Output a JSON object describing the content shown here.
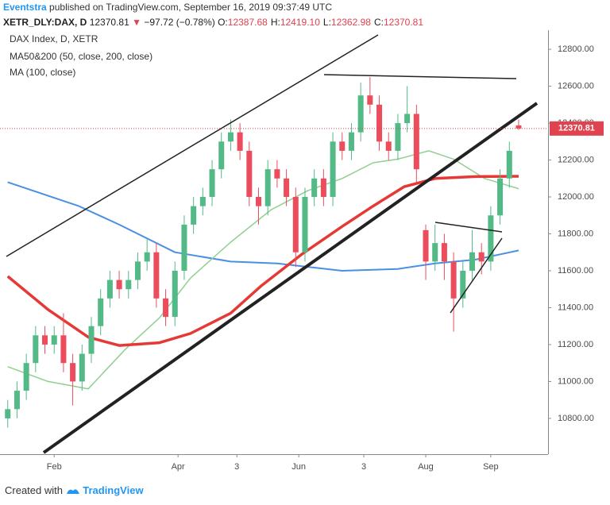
{
  "header": {
    "author": "Eventstra",
    "published": "published on TradingView.com, September 16, 2019 09:37:49 UTC",
    "symbol": "XETR_DLY:DAX, D",
    "change": "−97.72 (−0.78%)",
    "ohlc": [
      {
        "label": "O:",
        "value": "12387.68"
      },
      {
        "label": "H:",
        "value": "12419.10"
      },
      {
        "label": "L:",
        "value": "12362.98"
      },
      {
        "label": "C:",
        "value": "12370.81"
      }
    ]
  },
  "chart_data": {
    "type": "candlestick",
    "legend": [
      "DAX Index, D, XETR",
      "MA50&200 (50, close, 200, close)",
      "MA (100, close)"
    ],
    "up_color": "#53b987",
    "down_color": "#eb4d5c",
    "last_price_color": "#e0424f",
    "x": [
      0,
      3,
      6,
      9,
      12,
      15,
      18,
      21,
      24,
      27,
      30,
      33,
      36,
      39,
      42,
      45,
      48,
      51,
      54,
      57,
      60,
      63,
      66,
      69,
      72,
      75,
      78,
      81,
      84,
      87,
      90,
      93,
      96,
      99,
      102,
      105,
      108,
      111,
      114,
      117,
      120,
      123,
      126,
      129,
      132,
      135,
      138,
      141,
      144,
      147,
      150,
      153,
      156,
      159,
      162,
      165
    ],
    "open": [
      10800,
      10850,
      10950,
      11100,
      11250,
      11200,
      11250,
      11100,
      11000,
      11150,
      11300,
      11450,
      11550,
      11500,
      11550,
      11650,
      11700,
      11450,
      11350,
      11600,
      11850,
      11950,
      12000,
      12150,
      12300,
      12350,
      12250,
      12000,
      11950,
      12150,
      12100,
      12000,
      11700,
      12000,
      12100,
      12000,
      12300,
      12250,
      12350,
      12550,
      12500,
      12300,
      12250,
      12400,
      12450,
      11820,
      11650,
      11750,
      11650,
      11450,
      11600,
      11700,
      11650,
      11900,
      12100,
      12387.68
    ],
    "high": [
      10900,
      11000,
      11150,
      11300,
      11300,
      11300,
      11370,
      11150,
      11200,
      11350,
      11500,
      11600,
      11600,
      11600,
      11700,
      11780,
      11750,
      11500,
      11650,
      11900,
      12000,
      12050,
      12200,
      12350,
      12420,
      12400,
      12300,
      12050,
      12200,
      12200,
      12150,
      12050,
      12050,
      12150,
      12150,
      12350,
      12350,
      12400,
      12620,
      12650,
      12550,
      12350,
      12450,
      12600,
      12500,
      11850,
      11850,
      11800,
      11700,
      11650,
      11820,
      11750,
      11950,
      12150,
      12300,
      12419.1
    ],
    "low": [
      10750,
      10800,
      10900,
      11050,
      11150,
      11150,
      11050,
      10870,
      10950,
      11100,
      11250,
      11400,
      11450,
      11450,
      11500,
      11600,
      11400,
      11300,
      11300,
      11550,
      11800,
      11900,
      11950,
      12100,
      12250,
      12200,
      11950,
      11850,
      11900,
      12050,
      11950,
      11620,
      11650,
      11950,
      11950,
      11950,
      12200,
      12200,
      12300,
      12450,
      12250,
      12200,
      12200,
      12350,
      12080,
      11550,
      11600,
      11550,
      11270,
      11400,
      11550,
      11580,
      11600,
      11850,
      12050,
      12362.98
    ],
    "close": [
      10850,
      10950,
      11100,
      11250,
      11200,
      11250,
      11100,
      11000,
      11150,
      11300,
      11450,
      11550,
      11500,
      11550,
      11650,
      11700,
      11450,
      11350,
      11600,
      11850,
      11950,
      12000,
      12150,
      12300,
      12350,
      12250,
      12000,
      11950,
      12150,
      12100,
      12000,
      11700,
      12000,
      12100,
      12000,
      12300,
      12250,
      12350,
      12550,
      12500,
      12300,
      12250,
      12400,
      12450,
      12150,
      11650,
      11750,
      11650,
      11450,
      11600,
      11700,
      11650,
      11900,
      12100,
      12250,
      12370.81
    ],
    "lines": [
      {
        "color": "#4a90e2",
        "width": 2,
        "x": [
          0,
          23,
          36,
          54,
          72,
          87,
          108,
          126,
          138,
          151,
          165
        ],
        "values": [
          12080,
          11950,
          11850,
          11700,
          11650,
          11640,
          11600,
          11610,
          11640,
          11660,
          11710
        ]
      },
      {
        "color": "#8fcf8f",
        "width": 1.5,
        "x": [
          0,
          13,
          26,
          38,
          49,
          59,
          72,
          85,
          97,
          108,
          118,
          126,
          136,
          144,
          154,
          165
        ],
        "values": [
          11080,
          11000,
          10960,
          11175,
          11345,
          11560,
          11755,
          11930,
          12035,
          12100,
          12185,
          12205,
          12250,
          12205,
          12100,
          12045
        ]
      },
      {
        "color": "#e53935",
        "width": 3.5,
        "x": [
          0,
          13,
          26,
          36,
          49,
          59,
          72,
          82,
          95,
          108,
          118,
          128,
          138,
          151,
          165
        ],
        "values": [
          11570,
          11390,
          11240,
          11195,
          11210,
          11260,
          11370,
          11520,
          11690,
          11840,
          11950,
          12055,
          12100,
          12110,
          12112
        ]
      }
    ],
    "xlim": [
      -2.5,
      174.5
    ],
    "ylim": [
      10606,
      12895
    ],
    "xticks": [
      {
        "value": 15,
        "label": "Feb"
      },
      {
        "value": 55,
        "label": "Apr"
      },
      {
        "value": 74,
        "label": "3"
      },
      {
        "value": 94,
        "label": "Jun"
      },
      {
        "value": 115,
        "label": "3"
      },
      {
        "value": 135,
        "label": "Aug"
      },
      {
        "value": 156,
        "label": "Sep"
      }
    ],
    "yticks": [
      {
        "value": 10800,
        "label": "10800.00"
      },
      {
        "value": 11000,
        "label": "11000.00"
      },
      {
        "value": 11200,
        "label": "11200.00"
      },
      {
        "value": 11400,
        "label": "11400.00"
      },
      {
        "value": 11600,
        "label": "11600.00"
      },
      {
        "value": 11800,
        "label": "11800.00"
      },
      {
        "value": 12000,
        "label": "12000.00"
      },
      {
        "value": 12200,
        "label": "12200.00"
      },
      {
        "value": 12400,
        "label": "12400.00"
      },
      {
        "value": 12600,
        "label": "12600.00"
      },
      {
        "value": 12800,
        "label": "12800.00"
      }
    ]
  },
  "footer": {
    "created": "Created with",
    "brand": "TradingView"
  }
}
